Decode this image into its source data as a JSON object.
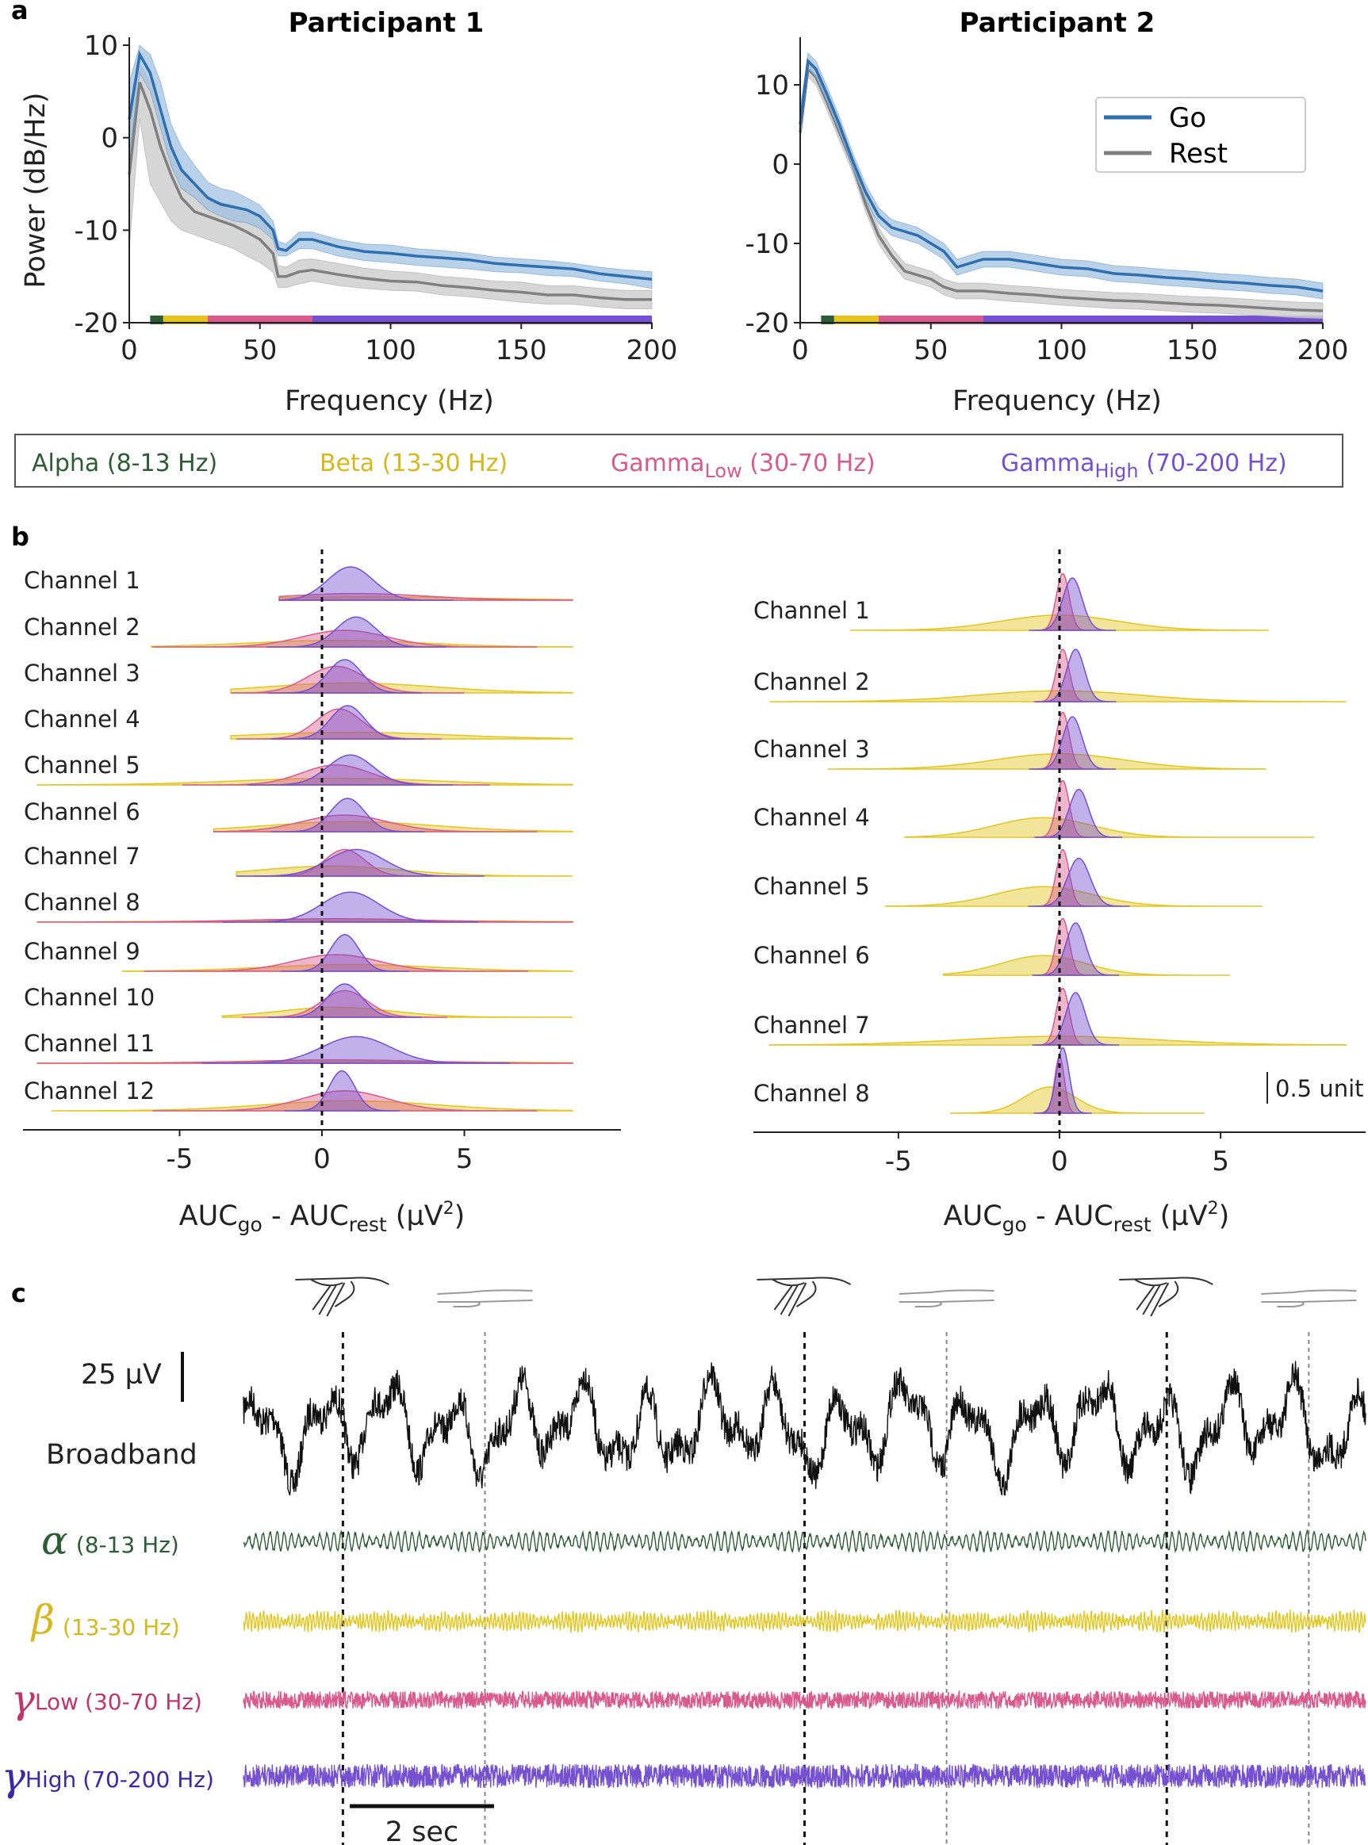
{
  "panel_labels": [
    "a",
    "b",
    "c"
  ],
  "colors": {
    "go": "#2f6faf",
    "go_fill": "#9bbfe0",
    "rest": "#808080",
    "rest_fill": "#cfcfcf",
    "alpha": "#2b5c34",
    "beta": "#e3c61d",
    "gamma_low": "#d95a8c",
    "gamma_high": "#7550d0",
    "broadband": "#111111"
  },
  "band_legend": [
    {
      "name": "Alpha",
      "sub": "",
      "range": "(8-13 Hz)",
      "color": "#2b5c34"
    },
    {
      "name": "Beta",
      "sub": "",
      "range": "(13-30 Hz)",
      "color": "#d6b81a"
    },
    {
      "name": "Gamma",
      "sub": "Low",
      "range": "(30-70 Hz)",
      "color": "#d95a8c"
    },
    {
      "name": "Gamma",
      "sub": "High",
      "range": "(70-200 Hz)",
      "color": "#7550d0"
    }
  ],
  "chart_data": [
    {
      "type": "line",
      "panel": "a",
      "title": "Participant 1",
      "xlabel": "Frequency (Hz)",
      "ylabel": "Power (dB/Hz)",
      "xlim": [
        0,
        200
      ],
      "ylim": [
        -20,
        10
      ],
      "xticks": [
        0,
        50,
        100,
        150,
        200
      ],
      "yticks": [
        10,
        0,
        -10,
        -20
      ],
      "x": [
        0,
        4,
        8,
        12,
        16,
        20,
        25,
        30,
        35,
        40,
        45,
        50,
        55,
        57,
        60,
        65,
        70,
        80,
        90,
        100,
        110,
        120,
        130,
        140,
        150,
        160,
        170,
        180,
        190,
        200
      ],
      "series": [
        {
          "name": "Go",
          "values": [
            2,
            9,
            7,
            3,
            -1,
            -3.5,
            -5,
            -6.5,
            -7.2,
            -7.5,
            -7.8,
            -8.5,
            -10,
            -12,
            -12.2,
            -11,
            -11,
            -11.8,
            -12.3,
            -12.5,
            -12.8,
            -13,
            -13.2,
            -13.6,
            -13.8,
            -14,
            -14.2,
            -14.7,
            -15,
            -15.3
          ],
          "lower": [
            -2,
            7,
            5,
            1,
            -3,
            -5.5,
            -6.5,
            -7.8,
            -8.5,
            -9,
            -9.2,
            -9.8,
            -11,
            -12.8,
            -12.8,
            -12,
            -12,
            -12.8,
            -13.3,
            -13.5,
            -13.8,
            -14,
            -14.2,
            -14.5,
            -14.6,
            -14.9,
            -15,
            -15.5,
            -15.8,
            -16.3
          ],
          "upper": [
            6,
            10,
            9,
            6,
            1.5,
            -1,
            -3,
            -4.8,
            -5.5,
            -5.8,
            -6.5,
            -7.3,
            -9,
            -11.2,
            -11.5,
            -10.2,
            -10.2,
            -11,
            -11.5,
            -11.6,
            -12,
            -12.2,
            -12.5,
            -12.9,
            -13.1,
            -13.3,
            -13.6,
            -14,
            -14.3,
            -14.5
          ]
        },
        {
          "name": "Rest",
          "values": [
            -4,
            6,
            3,
            -1,
            -4,
            -6.5,
            -8,
            -8.5,
            -9,
            -9.5,
            -10.2,
            -11,
            -12.5,
            -15,
            -15,
            -14.5,
            -14.3,
            -14.8,
            -15.2,
            -15.5,
            -15.6,
            -16,
            -16.2,
            -16.5,
            -16.7,
            -17,
            -17,
            -17.3,
            -17.5,
            -17.5
          ],
          "lower": [
            -12,
            2,
            -5,
            -7,
            -9,
            -10,
            -10.5,
            -11,
            -11.5,
            -12,
            -12.8,
            -13.5,
            -14.5,
            -16.2,
            -16.2,
            -15.8,
            -15.5,
            -16,
            -16.3,
            -16.5,
            -16.6,
            -17,
            -17.2,
            -17.5,
            -17.8,
            -18,
            -18,
            -18.3,
            -18.5,
            -18.5
          ],
          "upper": [
            2,
            8,
            6,
            2,
            -1,
            -3.5,
            -5.5,
            -6.5,
            -7,
            -7.3,
            -8,
            -8.8,
            -10.5,
            -13.8,
            -14,
            -13.2,
            -13.1,
            -13.6,
            -14.1,
            -14.4,
            -14.6,
            -15,
            -15.2,
            -15.5,
            -15.6,
            -16,
            -16,
            -16.3,
            -16.5,
            -16.5
          ]
        }
      ]
    },
    {
      "type": "line",
      "panel": "a",
      "title": "Participant 2",
      "xlabel": "Frequency (Hz)",
      "ylabel": "",
      "xlim": [
        0,
        200
      ],
      "ylim": [
        -20,
        15
      ],
      "xticks": [
        0,
        50,
        100,
        150,
        200
      ],
      "yticks": [
        10,
        0,
        -10,
        -20
      ],
      "legend": {
        "placement": "top-right",
        "entries": [
          "Go",
          "Rest"
        ]
      },
      "x": [
        0,
        3,
        6,
        10,
        15,
        20,
        25,
        30,
        35,
        40,
        45,
        50,
        55,
        60,
        70,
        80,
        90,
        100,
        110,
        120,
        130,
        140,
        150,
        160,
        170,
        180,
        190,
        200
      ],
      "series": [
        {
          "name": "Go",
          "values": [
            5,
            13,
            12,
            9,
            5,
            0.5,
            -3.5,
            -6.5,
            -8,
            -8.5,
            -9,
            -10,
            -11,
            -13,
            -12,
            -12,
            -12.5,
            -13,
            -13.2,
            -13.8,
            -14,
            -14.3,
            -14.5,
            -14.8,
            -15,
            -15.3,
            -15.5,
            -16
          ],
          "lower": [
            3,
            12,
            11,
            8,
            4,
            -0.5,
            -4.5,
            -7.5,
            -9,
            -9.5,
            -10,
            -11,
            -12,
            -14,
            -13,
            -13,
            -13.5,
            -14,
            -14.2,
            -14.8,
            -15,
            -15.3,
            -15.5,
            -15.8,
            -16,
            -16.3,
            -16.5,
            -17
          ],
          "upper": [
            7,
            14,
            13,
            10,
            6,
            1.5,
            -2.5,
            -5.5,
            -7,
            -7.5,
            -8,
            -9,
            -10,
            -12,
            -11,
            -11,
            -11.5,
            -12,
            -12.2,
            -12.8,
            -13,
            -13.3,
            -13.5,
            -13.8,
            -14,
            -14.3,
            -14.5,
            -15
          ]
        },
        {
          "name": "Rest",
          "values": [
            4,
            12,
            11,
            8,
            4,
            0,
            -5,
            -9,
            -11.5,
            -13.5,
            -14,
            -14.5,
            -15.5,
            -16,
            -16,
            -16.3,
            -16.5,
            -16.8,
            -17,
            -17.2,
            -17.3,
            -17.5,
            -17.7,
            -17.8,
            -18,
            -18.2,
            -18.4,
            -18.5
          ],
          "lower": [
            3,
            11,
            10,
            7,
            3,
            -1,
            -6,
            -10,
            -12.5,
            -14.5,
            -15,
            -15.5,
            -16.5,
            -17,
            -17,
            -17.3,
            -17.5,
            -17.8,
            -18,
            -18.2,
            -18.3,
            -18.5,
            -18.7,
            -18.8,
            -19,
            -19.2,
            -19.4,
            -19.5
          ],
          "upper": [
            5,
            13,
            12,
            9,
            5,
            1,
            -4,
            -8,
            -10.5,
            -12.5,
            -13,
            -13.5,
            -14.5,
            -15,
            -15,
            -15.3,
            -15.5,
            -15.8,
            -16,
            -16.2,
            -16.3,
            -16.5,
            -16.7,
            -16.8,
            -17,
            -17.2,
            -17.4,
            -17.5
          ]
        }
      ]
    },
    {
      "type": "area",
      "panel": "b",
      "xlabel": "AUC",
      "xlabel_sub1": "go",
      "xlabel_mid": " - AUC",
      "xlabel_sub2": "rest",
      "xlabel_unit": " (µV",
      "xlabel_sup": "2",
      "xlabel_end": ")",
      "xlim": [
        -10.5,
        10.5
      ],
      "xticks": [
        -5,
        0,
        5
      ],
      "channels": [
        "Channel 1",
        "Channel 2",
        "Channel 3",
        "Channel 4",
        "Channel 5",
        "Channel 6",
        "Channel 7",
        "Channel 8",
        "Channel 9",
        "Channel 10",
        "Channel 11",
        "Channel 12"
      ],
      "band_distributions": [
        {
          "gh": [
            1.0,
            0.8,
            1.0
          ],
          "gl": [
            1.2,
            2.5,
            0.2
          ],
          "b": [
            1.5,
            4.0,
            0.1
          ],
          "span": [
            -1.5,
            8.8
          ]
        },
        {
          "gh": [
            1.2,
            0.7,
            0.9
          ],
          "gl": [
            0.8,
            1.5,
            0.5
          ],
          "b": [
            0.5,
            3.0,
            0.2
          ],
          "span": [
            -6.0,
            8.8
          ]
        },
        {
          "gh": [
            0.8,
            0.6,
            1.0
          ],
          "gl": [
            0.5,
            1.0,
            0.8
          ],
          "b": [
            1.0,
            3.0,
            0.3
          ],
          "span": [
            -3.2,
            8.8
          ]
        },
        {
          "gh": [
            0.9,
            0.6,
            1.0
          ],
          "gl": [
            0.6,
            0.8,
            0.9
          ],
          "b": [
            1.0,
            3.5,
            0.2
          ],
          "span": [
            -3.2,
            8.8
          ]
        },
        {
          "gh": [
            1.0,
            0.8,
            0.9
          ],
          "gl": [
            0.5,
            1.2,
            0.6
          ],
          "b": [
            0.5,
            3.5,
            0.2
          ],
          "span": [
            -10.0,
            8.8
          ]
        },
        {
          "gh": [
            0.9,
            0.6,
            1.0
          ],
          "gl": [
            0.8,
            1.5,
            0.5
          ],
          "b": [
            1.0,
            3.0,
            0.3
          ],
          "span": [
            -3.8,
            8.8
          ]
        },
        {
          "gh": [
            1.2,
            1.0,
            0.8
          ],
          "gl": [
            0.8,
            0.7,
            0.8
          ],
          "b": [
            0.3,
            2.5,
            0.3
          ],
          "span": [
            -3.0,
            8.8
          ]
        },
        {
          "gh": [
            1.0,
            1.0,
            0.9
          ],
          "gl": [
            0.5,
            3.0,
            0.1
          ],
          "b": [
            1.0,
            5.0,
            0.05
          ],
          "span": [
            -10.0,
            8.8
          ]
        },
        {
          "gh": [
            0.8,
            0.5,
            1.1
          ],
          "gl": [
            0.5,
            1.5,
            0.5
          ],
          "b": [
            1.0,
            3.0,
            0.2
          ],
          "span": [
            -7.0,
            8.8
          ]
        },
        {
          "gh": [
            0.8,
            0.6,
            1.0
          ],
          "gl": [
            0.8,
            0.8,
            0.8
          ],
          "b": [
            0.5,
            2.0,
            0.3
          ],
          "span": [
            -3.5,
            8.8
          ]
        },
        {
          "gh": [
            1.2,
            1.2,
            0.8
          ],
          "gl": [
            0.5,
            3.0,
            0.1
          ],
          "b": [
            1.0,
            5.0,
            0.05
          ],
          "span": [
            -10.0,
            8.8
          ]
        },
        {
          "gh": [
            0.7,
            0.45,
            1.2
          ],
          "gl": [
            0.8,
            1.5,
            0.6
          ],
          "b": [
            1.0,
            3.0,
            0.3
          ],
          "span": [
            -9.5,
            8.8
          ]
        }
      ]
    },
    {
      "type": "area",
      "panel": "b",
      "xlabel": "AUC",
      "xlabel_sub1": "go",
      "xlabel_mid": " - AUC",
      "xlabel_sub2": "rest",
      "xlabel_unit": " (µV",
      "xlabel_sup": "2",
      "xlabel_end": ")",
      "xlim": [
        -9.5,
        9.5
      ],
      "xticks": [
        -5,
        0,
        5
      ],
      "scale_bar": "0.5 unit",
      "channels": [
        "Channel 1",
        "Channel 2",
        "Channel 3",
        "Channel 4",
        "Channel 5",
        "Channel 6",
        "Channel 7",
        "Channel 8"
      ],
      "band_distributions": [
        {
          "gh": [
            0.4,
            0.3,
            1.2
          ],
          "gl": [
            0.1,
            0.2,
            1.3
          ],
          "b": [
            0,
            1.8,
            0.35
          ],
          "span": [
            -6.5,
            6.5
          ]
        },
        {
          "gh": [
            0.5,
            0.28,
            1.2
          ],
          "gl": [
            0.1,
            0.2,
            1.2
          ],
          "b": [
            0,
            2.5,
            0.25
          ],
          "span": [
            -9.0,
            8.9
          ]
        },
        {
          "gh": [
            0.4,
            0.3,
            1.2
          ],
          "gl": [
            0.1,
            0.2,
            1.3
          ],
          "b": [
            0,
            2.0,
            0.35
          ],
          "span": [
            -7.2,
            6.4
          ]
        },
        {
          "gh": [
            0.6,
            0.3,
            1.1
          ],
          "gl": [
            0.1,
            0.2,
            1.3
          ],
          "b": [
            -0.5,
            1.5,
            0.45
          ],
          "span": [
            -4.8,
            7.9
          ]
        },
        {
          "gh": [
            0.6,
            0.35,
            1.1
          ],
          "gl": [
            0.1,
            0.2,
            1.3
          ],
          "b": [
            -0.5,
            1.5,
            0.45
          ],
          "span": [
            -5.4,
            6.3
          ]
        },
        {
          "gh": [
            0.5,
            0.3,
            1.2
          ],
          "gl": [
            0.1,
            0.2,
            1.3
          ],
          "b": [
            -0.5,
            1.3,
            0.45
          ],
          "span": [
            -3.6,
            5.3
          ]
        },
        {
          "gh": [
            0.5,
            0.3,
            1.2
          ],
          "gl": [
            0.1,
            0.2,
            1.3
          ],
          "b": [
            0,
            3.0,
            0.2
          ],
          "span": [
            -9.0,
            8.9
          ]
        },
        {
          "gh": [
            0.1,
            0.2,
            1.5
          ],
          "gl": [
            0.0,
            0.15,
            1.3
          ],
          "b": [
            -0.3,
            0.8,
            0.6
          ],
          "span": [
            -3.4,
            4.5
          ]
        }
      ]
    },
    {
      "type": "line",
      "panel": "c",
      "scale_bar_v": "25 µV",
      "scale_bar_t": "2 sec",
      "broadband_label": "Broadband",
      "traces": [
        {
          "symbol": "α",
          "sub": "",
          "range": "(8-13 Hz)",
          "key": "alpha"
        },
        {
          "symbol": "β",
          "sub": "",
          "range": "(13-30 Hz)",
          "key": "beta"
        },
        {
          "symbol": "γ",
          "sub": "Low",
          "range": "(30-70 Hz)",
          "key": "gamma_low"
        },
        {
          "symbol": "γ",
          "sub": "High",
          "range": "(70-200 Hz)",
          "key": "gamma_high"
        }
      ],
      "go_cues_sec": [
        1.4,
        7.9,
        13.0
      ],
      "rest_cues_sec": [
        3.4,
        9.9,
        15.0
      ],
      "duration_sec": 15.8
    }
  ]
}
